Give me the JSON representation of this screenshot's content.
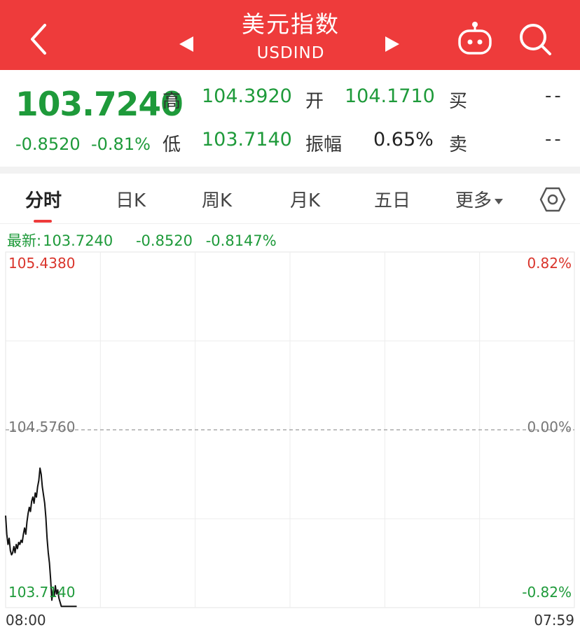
{
  "header": {
    "title": "美元指数",
    "subtitle": "USDIND"
  },
  "quote": {
    "price": "103.7240",
    "change": "-0.8520",
    "change_pct": "-0.81%",
    "high_label": "高",
    "high": "104.3920",
    "open_label": "开",
    "open": "104.1710",
    "buy_label": "买",
    "buy": "--",
    "low_label": "低",
    "low": "103.7140",
    "amplitude_label": "振幅",
    "amplitude": "0.65%",
    "sell_label": "卖",
    "sell": "--"
  },
  "tabs": [
    {
      "label": "分时",
      "active": true
    },
    {
      "label": "日K"
    },
    {
      "label": "周K"
    },
    {
      "label": "月K"
    },
    {
      "label": "五日"
    },
    {
      "label": "更多"
    }
  ],
  "latest": {
    "prefix": "最新:",
    "price": "103.7240",
    "change": "-0.8520",
    "change_pct": "-0.8147%"
  },
  "colors": {
    "header_red": "#ee3b3b",
    "up_red": "#d9342b",
    "down_green": "#1e9a3a"
  },
  "icons": [
    "back-chevron-icon",
    "prev-triangle-icon",
    "next-triangle-icon",
    "robot-icon",
    "search-icon",
    "settings-hexagon-icon"
  ],
  "chart_data": {
    "type": "line",
    "y_max_label": "105.4380",
    "y_mid_label": "104.5760",
    "y_min_label": "103.7140",
    "pct_max_label": "0.82%",
    "pct_mid_label": "0.00%",
    "pct_min_label": "-0.82%",
    "x_start_label": "08:00",
    "x_end_label": "07:59",
    "ylim": [
      103.714,
      105.438
    ],
    "baseline": 104.576,
    "minutes_total": 1440,
    "series": [
      {
        "x": [
          0,
          3,
          6,
          9,
          12,
          15,
          18,
          21,
          24,
          27,
          30,
          33,
          36,
          39,
          42,
          45,
          48,
          51,
          54,
          57,
          60,
          63,
          66,
          69,
          72,
          75,
          78,
          81,
          84,
          87,
          90,
          93,
          96,
          99,
          102,
          105,
          108,
          111,
          114,
          117,
          120,
          123,
          126,
          129,
          132,
          135,
          138,
          141,
          144,
          147,
          150,
          153,
          156,
          159,
          162,
          165,
          168,
          171,
          174,
          177,
          180
        ],
        "values": [
          104.16,
          104.07,
          104.02,
          104.05,
          103.99,
          103.97,
          103.98,
          104.01,
          103.98,
          104.02,
          104.0,
          104.03,
          104.02,
          104.04,
          104.03,
          104.07,
          104.1,
          104.07,
          104.13,
          104.17,
          104.2,
          104.18,
          104.23,
          104.25,
          104.22,
          104.27,
          104.25,
          104.3,
          104.33,
          104.39,
          104.36,
          104.3,
          104.26,
          104.22,
          104.15,
          104.05,
          103.98,
          103.93,
          103.85,
          103.75,
          103.8,
          103.77,
          103.82,
          103.78,
          103.8,
          103.76,
          103.74,
          103.72,
          103.72,
          103.72,
          103.72,
          103.72,
          103.72,
          103.72,
          103.72,
          103.72,
          103.72,
          103.72,
          103.72,
          103.72,
          103.72
        ]
      }
    ]
  }
}
